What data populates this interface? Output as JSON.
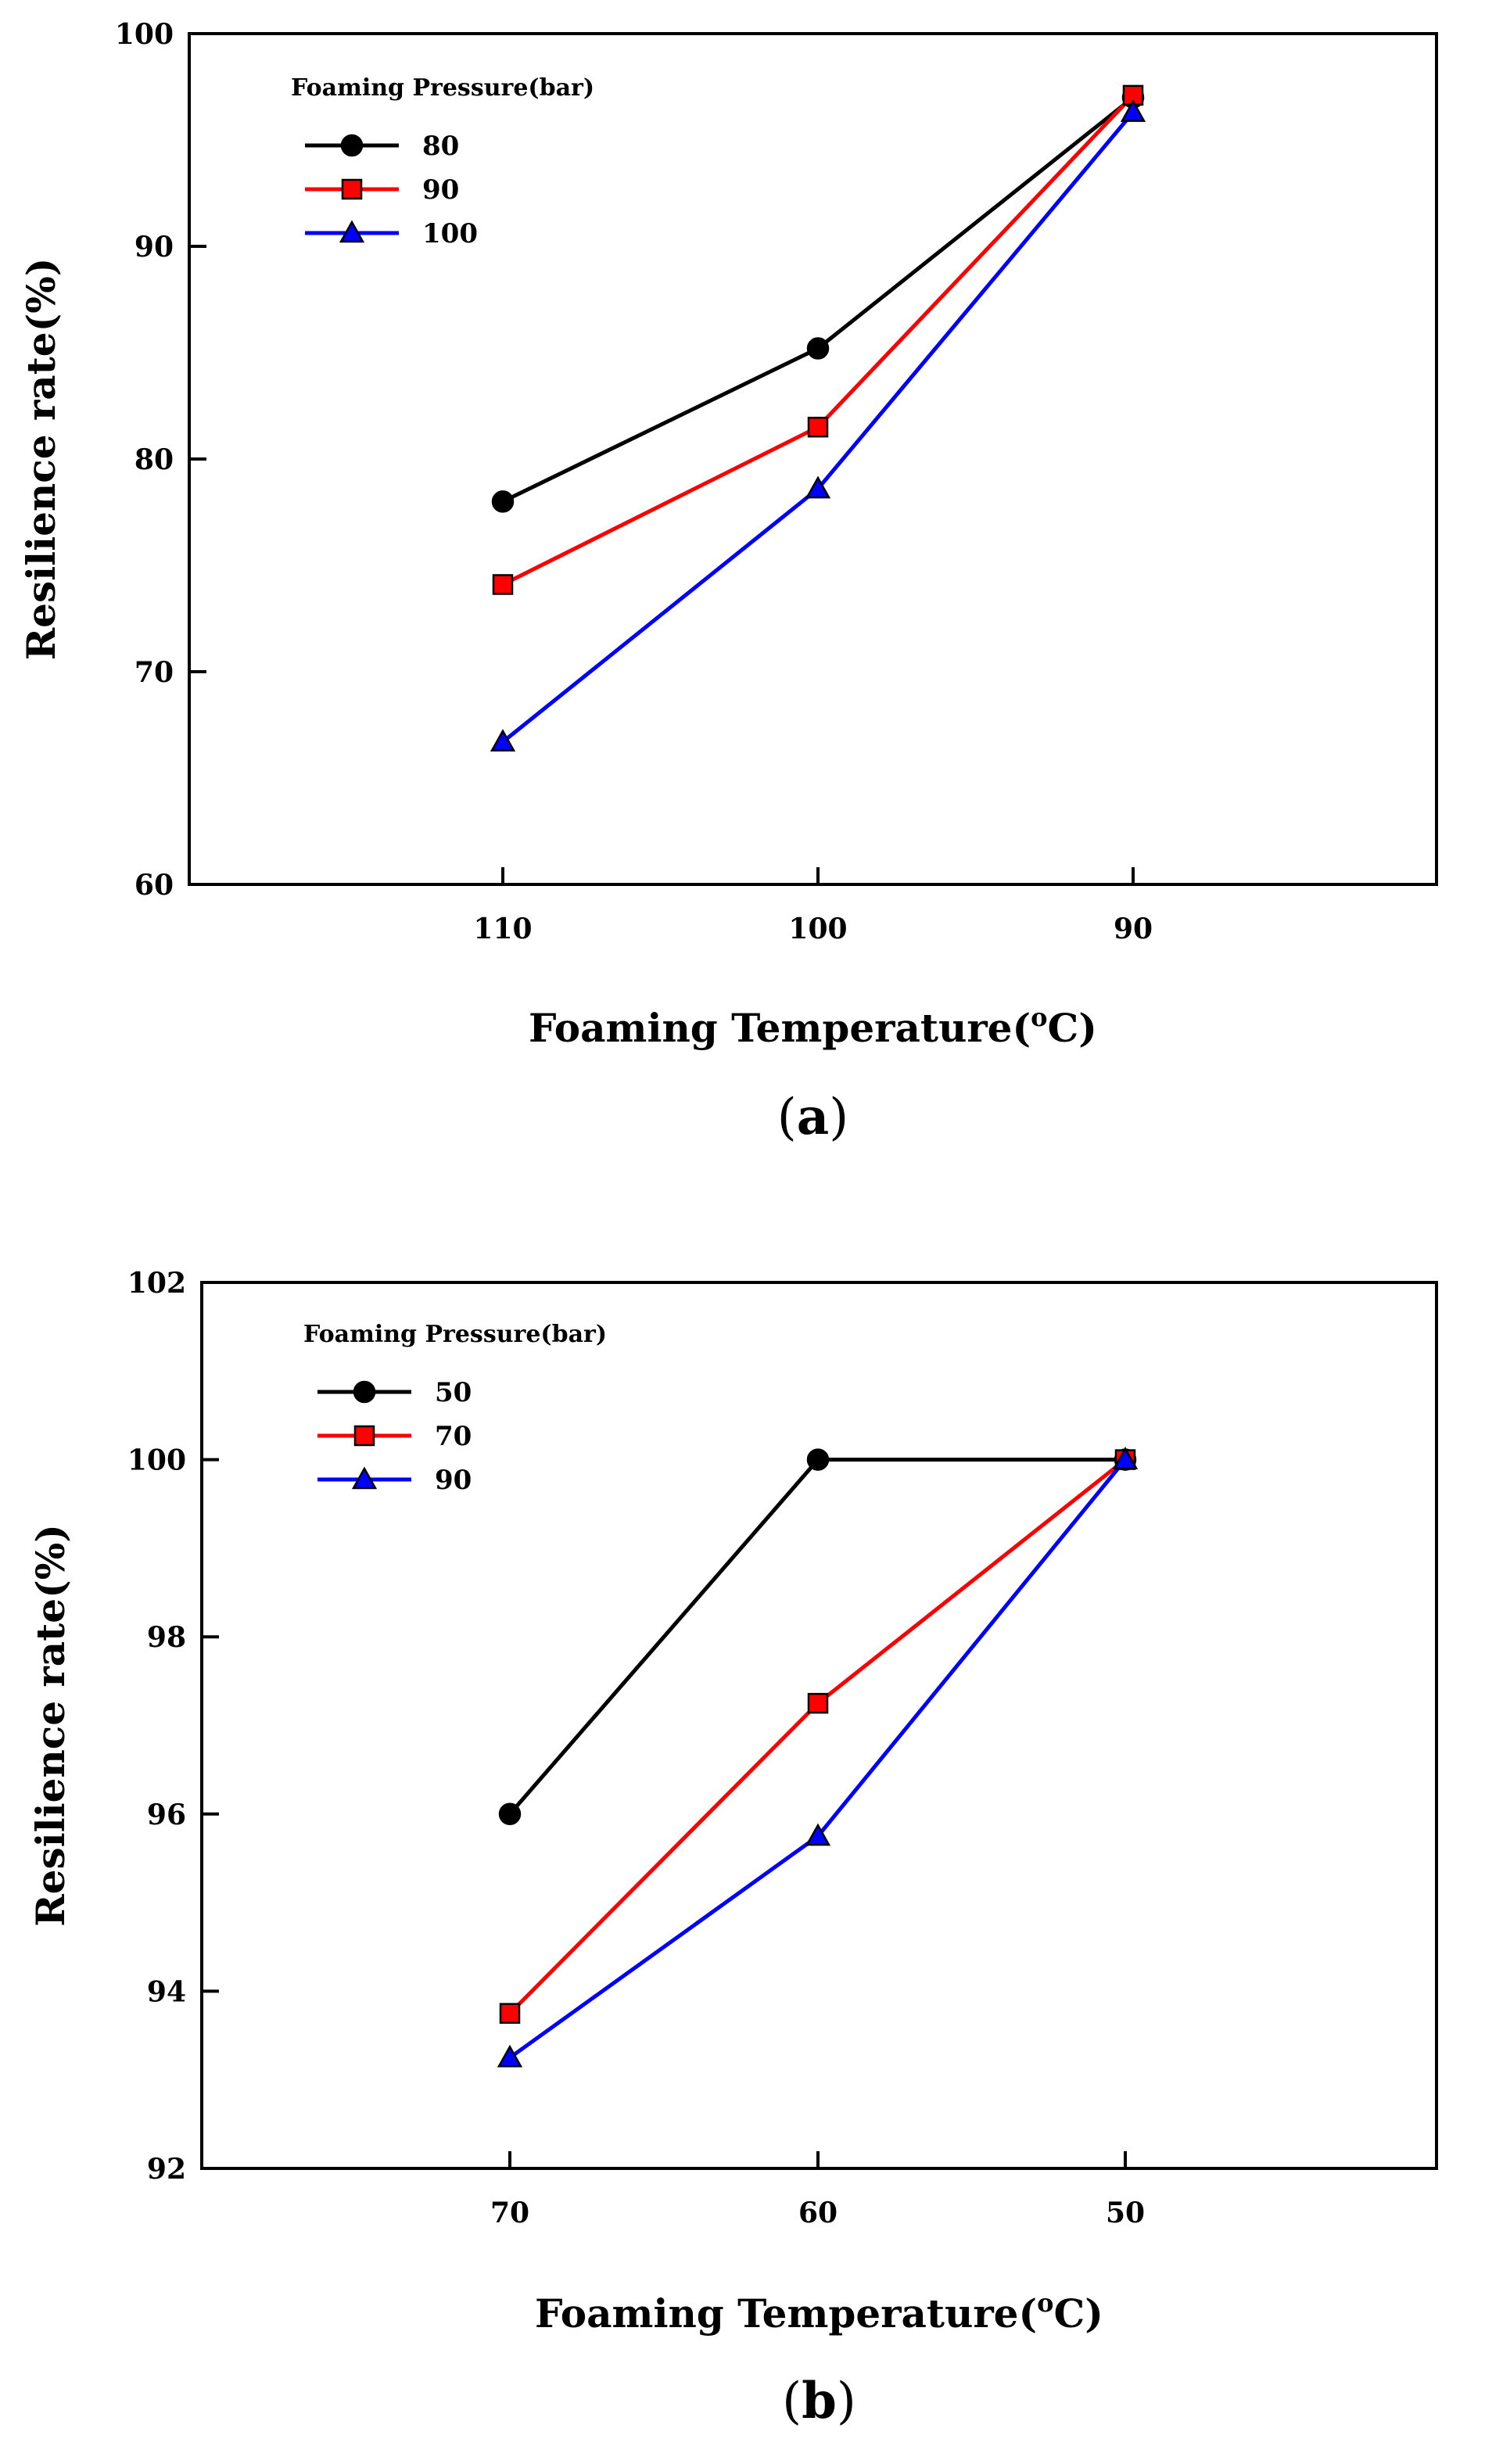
{
  "chart_data": [
    {
      "type": "line",
      "panel_label": "a",
      "xlabel": "Foaming Temperature(",
      "xlabel_sup": "o",
      "xlabel_tail": "C)",
      "ylabel": "Resilience rate(%)",
      "ylim": [
        60,
        100
      ],
      "yticks": [
        60,
        70,
        80,
        90,
        100
      ],
      "categories": [
        "110",
        "100",
        "90"
      ],
      "legend_title": "Foaming Pressure(bar)",
      "legend_position": "top-left",
      "series": [
        {
          "name": "80",
          "values": [
            78,
            85.2,
            97
          ],
          "color": "#000000",
          "marker": "circle"
        },
        {
          "name": "90",
          "values": [
            74.1,
            81.5,
            97.1
          ],
          "color": "#ff0000",
          "marker": "square"
        },
        {
          "name": "100",
          "values": [
            66.7,
            78.6,
            96.3
          ],
          "color": "#0000ff",
          "marker": "triangle"
        }
      ]
    },
    {
      "type": "line",
      "panel_label": "b",
      "xlabel": "Foaming Temperature(",
      "xlabel_sup": "o",
      "xlabel_tail": "C)",
      "ylabel": "Resilience rate(%)",
      "ylim": [
        92,
        102
      ],
      "yticks": [
        92,
        94,
        96,
        98,
        100,
        102
      ],
      "categories": [
        "70",
        "60",
        "50"
      ],
      "legend_title": "Foaming Pressure(bar)",
      "legend_position": "top-left",
      "series": [
        {
          "name": "50",
          "values": [
            96,
            100,
            100
          ],
          "color": "#000000",
          "marker": "circle"
        },
        {
          "name": "70",
          "values": [
            93.75,
            97.25,
            100
          ],
          "color": "#ff0000",
          "marker": "square"
        },
        {
          "name": "90",
          "values": [
            93.25,
            95.75,
            100
          ],
          "color": "#0000ff",
          "marker": "triangle"
        }
      ]
    }
  ]
}
